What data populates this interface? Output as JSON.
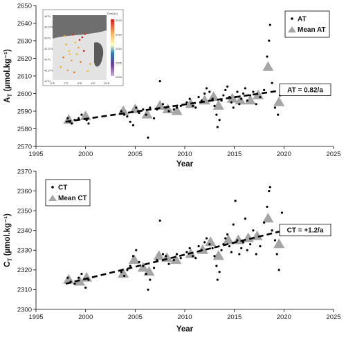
{
  "chart_data": [
    {
      "type": "scatter",
      "ylabel": "A_T (µmol.kg⁻¹)",
      "ylabel_main": "A",
      "ylabel_sub": "T",
      "ylabel_rest": " (µmol.kg⁻¹)",
      "xlabel": "Year",
      "xlim": [
        1995,
        2025
      ],
      "ylim": [
        2570,
        2650
      ],
      "xticks": [
        "1995",
        "2000",
        "2005",
        "2010",
        "2015",
        "2020",
        "2025"
      ],
      "yticks": [
        "2570",
        "2580",
        "2590",
        "2600",
        "2610",
        "2620",
        "2630",
        "2640",
        "2650"
      ],
      "grid": false,
      "legend_position": "top-right",
      "series": [
        {
          "name": "AT",
          "marker": "dot",
          "points": [
            [
              1998.2,
              2586
            ],
            [
              1998.4,
              2584
            ],
            [
              1998.6,
              2583
            ],
            [
              1998.9,
              2585
            ],
            [
              1999.3,
              2586
            ],
            [
              1999.6,
              2588
            ],
            [
              2000.1,
              2585
            ],
            [
              2000.3,
              2583
            ],
            [
              2003.6,
              2590
            ],
            [
              2003.9,
              2588
            ],
            [
              2004.2,
              2587
            ],
            [
              2004.5,
              2584
            ],
            [
              2004.8,
              2582
            ],
            [
              2005.1,
              2592
            ],
            [
              2005.4,
              2589
            ],
            [
              2005.8,
              2591
            ],
            [
              2006.1,
              2588
            ],
            [
              2006.3,
              2575
            ],
            [
              2006.5,
              2592
            ],
            [
              2006.9,
              2586
            ],
            [
              2007.2,
              2591
            ],
            [
              2007.5,
              2607
            ],
            [
              2007.8,
              2594
            ],
            [
              2008.1,
              2592
            ],
            [
              2008.4,
              2590
            ],
            [
              2008.9,
              2591
            ],
            [
              2009.2,
              2592
            ],
            [
              2009.6,
              2593
            ],
            [
              2010.2,
              2595
            ],
            [
              2010.5,
              2597
            ],
            [
              2010.8,
              2593
            ],
            [
              2011.1,
              2592
            ],
            [
              2011.4,
              2598
            ],
            [
              2011.7,
              2596
            ],
            [
              2012.0,
              2600
            ],
            [
              2012.2,
              2603
            ],
            [
              2012.5,
              2601
            ],
            [
              2012.8,
              2597
            ],
            [
              2013.0,
              2593
            ],
            [
              2013.2,
              2588
            ],
            [
              2013.3,
              2581
            ],
            [
              2013.5,
              2585
            ],
            [
              2013.7,
              2596
            ],
            [
              2013.9,
              2599
            ],
            [
              2014.1,
              2602
            ],
            [
              2014.3,
              2604
            ],
            [
              2014.5,
              2598
            ],
            [
              2014.7,
              2595
            ],
            [
              2014.9,
              2592
            ],
            [
              2015.1,
              2598
            ],
            [
              2015.3,
              2601
            ],
            [
              2015.5,
              2594
            ],
            [
              2015.7,
              2597
            ],
            [
              2015.9,
              2600
            ],
            [
              2016.1,
              2603
            ],
            [
              2016.3,
              2596
            ],
            [
              2016.6,
              2599
            ],
            [
              2016.9,
              2601
            ],
            [
              2017.2,
              2594
            ],
            [
              2017.6,
              2598
            ],
            [
              2018.0,
              2602
            ],
            [
              2018.3,
              2621
            ],
            [
              2018.5,
              2630
            ],
            [
              2018.6,
              2639
            ],
            [
              2018.8,
              2606
            ],
            [
              2019.1,
              2592
            ],
            [
              2019.4,
              2588
            ],
            [
              2019.6,
              2599
            ],
            [
              2019.8,
              2603
            ]
          ]
        },
        {
          "name": "Mean AT",
          "marker": "triangle",
          "points": [
            [
              1998.3,
              2585
            ],
            [
              2000.0,
              2587
            ],
            [
              2003.8,
              2590
            ],
            [
              2005.0,
              2591
            ],
            [
              2006.2,
              2588
            ],
            [
              2007.5,
              2593
            ],
            [
              2008.3,
              2591
            ],
            [
              2009.2,
              2590
            ],
            [
              2010.6,
              2594
            ],
            [
              2012.0,
              2596
            ],
            [
              2012.9,
              2598
            ],
            [
              2013.4,
              2593
            ],
            [
              2014.8,
              2597
            ],
            [
              2015.6,
              2596
            ],
            [
              2016.6,
              2596
            ],
            [
              2017.4,
              2599
            ],
            [
              2018.4,
              2615
            ],
            [
              2019.5,
              2595
            ]
          ]
        }
      ],
      "trend": {
        "x": [
          1998,
          2020
        ],
        "y": [
          2584,
          2602
        ]
      },
      "annotation": "AT = 0.82/a",
      "inset_map": {
        "title": "Time [yr]",
        "colorbar_ticks": [
          "2020",
          "2015",
          "2010",
          "2005",
          "2000"
        ],
        "lat_ticks": [
          "44°N",
          "43.5°N",
          "43°N",
          "42.5°N",
          "42°N",
          "41.5°N",
          "41°N"
        ],
        "lon_ticks": [
          "6°E",
          "7°E",
          "8°E",
          "9°E",
          "10°E"
        ]
      }
    },
    {
      "type": "scatter",
      "ylabel": "C_T (µmol.kg⁻¹)",
      "ylabel_main": "C",
      "ylabel_sub": "T",
      "ylabel_rest": " (µmol.kg⁻¹)",
      "xlabel": "Year",
      "xlim": [
        1995,
        2025
      ],
      "ylim": [
        2300,
        2370
      ],
      "xticks": [
        "1995",
        "2000",
        "2005",
        "2010",
        "2015",
        "2020",
        "2025"
      ],
      "yticks": [
        "2300",
        "2310",
        "2320",
        "2330",
        "2340",
        "2350",
        "2360",
        "2370"
      ],
      "grid": false,
      "legend_position": "top-left",
      "series": [
        {
          "name": "CT",
          "marker": "dot",
          "points": [
            [
              1998.2,
              2316
            ],
            [
              1998.5,
              2314
            ],
            [
              1998.9,
              2313
            ],
            [
              1999.3,
              2316
            ],
            [
              1999.6,
              2318
            ],
            [
              2000.0,
              2311
            ],
            [
              2000.3,
              2315
            ],
            [
              2003.6,
              2319
            ],
            [
              2003.9,
              2317
            ],
            [
              2004.2,
              2320
            ],
            [
              2004.5,
              2322
            ],
            [
              2004.8,
              2327
            ],
            [
              2005.1,
              2330
            ],
            [
              2005.4,
              2324
            ],
            [
              2005.8,
              2322
            ],
            [
              2006.1,
              2318
            ],
            [
              2006.3,
              2310
            ],
            [
              2006.5,
              2315
            ],
            [
              2006.9,
              2321
            ],
            [
              2007.2,
              2325
            ],
            [
              2007.5,
              2345
            ],
            [
              2007.8,
              2328
            ],
            [
              2008.1,
              2327
            ],
            [
              2008.4,
              2323
            ],
            [
              2008.9,
              2325
            ],
            [
              2009.2,
              2328
            ],
            [
              2009.6,
              2326
            ],
            [
              2010.2,
              2329
            ],
            [
              2010.5,
              2331
            ],
            [
              2010.8,
              2327
            ],
            [
              2011.1,
              2326
            ],
            [
              2011.4,
              2332
            ],
            [
              2011.7,
              2330
            ],
            [
              2012.0,
              2334
            ],
            [
              2012.2,
              2336
            ],
            [
              2012.5,
              2333
            ],
            [
              2012.8,
              2331
            ],
            [
              2013.0,
              2327
            ],
            [
              2013.2,
              2322
            ],
            [
              2013.3,
              2315
            ],
            [
              2013.5,
              2319
            ],
            [
              2013.7,
              2330
            ],
            [
              2013.9,
              2333
            ],
            [
              2014.1,
              2336
            ],
            [
              2014.3,
              2338
            ],
            [
              2014.5,
              2332
            ],
            [
              2014.7,
              2329
            ],
            [
              2014.9,
              2343
            ],
            [
              2015.1,
              2355
            ],
            [
              2015.3,
              2335
            ],
            [
              2015.5,
              2328
            ],
            [
              2015.7,
              2331
            ],
            [
              2015.9,
              2334
            ],
            [
              2016.1,
              2346
            ],
            [
              2016.3,
              2330
            ],
            [
              2016.6,
              2333
            ],
            [
              2016.9,
              2340
            ],
            [
              2017.2,
              2328
            ],
            [
              2017.6,
              2332
            ],
            [
              2018.0,
              2344
            ],
            [
              2018.3,
              2352
            ],
            [
              2018.5,
              2360
            ],
            [
              2018.6,
              2362
            ],
            [
              2018.8,
              2340
            ],
            [
              2019.1,
              2335
            ],
            [
              2019.3,
              2328
            ],
            [
              2019.5,
              2320
            ],
            [
              2019.8,
              2349
            ]
          ]
        },
        {
          "name": "Mean CT",
          "marker": "triangle",
          "points": [
            [
              1998.3,
              2315
            ],
            [
              1999.4,
              2314
            ],
            [
              2000.1,
              2316
            ],
            [
              2003.8,
              2318
            ],
            [
              2004.9,
              2325
            ],
            [
              2005.8,
              2321
            ],
            [
              2006.4,
              2319
            ],
            [
              2007.4,
              2327
            ],
            [
              2008.2,
              2326
            ],
            [
              2009.1,
              2325
            ],
            [
              2010.6,
              2328
            ],
            [
              2011.8,
              2330
            ],
            [
              2012.6,
              2334
            ],
            [
              2013.4,
              2327
            ],
            [
              2014.4,
              2335
            ],
            [
              2015.4,
              2335
            ],
            [
              2016.4,
              2336
            ],
            [
              2017.3,
              2337
            ],
            [
              2018.4,
              2346
            ],
            [
              2019.5,
              2333
            ]
          ]
        }
      ],
      "trend": {
        "x": [
          1998,
          2020
        ],
        "y": [
          2313,
          2340
        ]
      },
      "annotation": "CT = +1.2/a"
    }
  ],
  "colors": {
    "dot": "#000000",
    "triangle": "#a6a6a6",
    "trend": "#000000",
    "axis": "#000000"
  }
}
